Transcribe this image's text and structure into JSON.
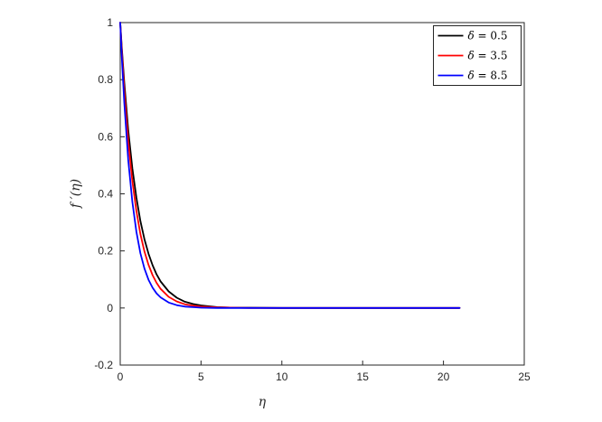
{
  "chart_data": {
    "type": "line",
    "title": "",
    "xlabel": "η",
    "ylabel": "f ′(η)",
    "xlim": [
      0,
      25
    ],
    "ylim": [
      -0.2,
      1
    ],
    "xticks": [
      0,
      5,
      10,
      15,
      20,
      25
    ],
    "yticks": [
      -0.2,
      0,
      0.2,
      0.4,
      0.6,
      0.8,
      1
    ],
    "grid": false,
    "legend_position": "top-right",
    "axis_color": "#262626",
    "tick_label_color": "#262626",
    "background": "#ffffff",
    "x": [
      0,
      0.1,
      0.25,
      0.5,
      0.75,
      1,
      1.25,
      1.5,
      1.75,
      2,
      2.25,
      2.5,
      3,
      3.5,
      4,
      4.5,
      5,
      6,
      7,
      8,
      10,
      12,
      15,
      18,
      21
    ],
    "series": [
      {
        "name": "δ = 0.5",
        "color": "#000000",
        "values": [
          1,
          0.909,
          0.789,
          0.622,
          0.49,
          0.387,
          0.305,
          0.241,
          0.19,
          0.15,
          0.118,
          0.093,
          0.058,
          0.036,
          0.022,
          0.014,
          0.009,
          0.003,
          0.001,
          0.001,
          0,
          0,
          0,
          0,
          0
        ]
      },
      {
        "name": "δ = 3.5",
        "color": "#ff0000",
        "values": [
          1,
          0.898,
          0.763,
          0.583,
          0.445,
          0.34,
          0.259,
          0.198,
          0.151,
          0.115,
          0.088,
          0.067,
          0.039,
          0.023,
          0.013,
          0.008,
          0.005,
          0.002,
          0.001,
          0,
          0,
          0,
          0,
          0,
          0
        ]
      },
      {
        "name": "δ = 8.5",
        "color": "#0000ff",
        "values": [
          1,
          0.876,
          0.719,
          0.517,
          0.372,
          0.267,
          0.192,
          0.138,
          0.099,
          0.071,
          0.051,
          0.037,
          0.019,
          0.01,
          0.005,
          0.003,
          0.001,
          0,
          0,
          0,
          0,
          0,
          0,
          0,
          0
        ]
      }
    ]
  }
}
